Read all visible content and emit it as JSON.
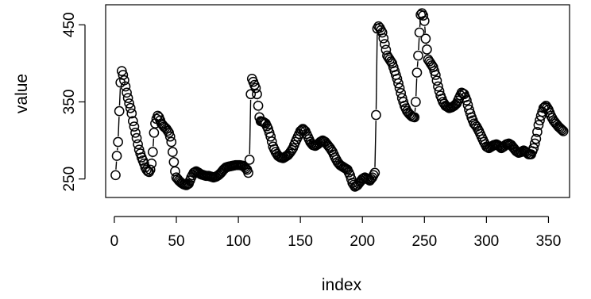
{
  "chart_data": {
    "type": "scatter",
    "xlabel": "index",
    "ylabel": "value",
    "xlim": [
      -7,
      367
    ],
    "ylim": [
      226,
      476
    ],
    "xticks": [
      0,
      50,
      100,
      150,
      200,
      250,
      300,
      350
    ],
    "yticks": [
      250,
      350,
      450
    ],
    "marker": "open-circle",
    "grid": false,
    "anchors": [
      [
        1,
        255
      ],
      [
        2,
        280
      ],
      [
        3,
        298
      ],
      [
        4,
        338
      ],
      [
        5,
        375
      ],
      [
        6,
        390
      ],
      [
        7,
        385
      ],
      [
        8,
        378
      ],
      [
        9,
        370
      ],
      [
        10,
        362
      ],
      [
        11,
        355
      ],
      [
        12,
        348
      ],
      [
        13,
        342
      ],
      [
        14,
        335
      ],
      [
        15,
        325
      ],
      [
        16,
        318
      ],
      [
        17,
        310
      ],
      [
        18,
        303
      ],
      [
        19,
        295
      ],
      [
        20,
        288
      ],
      [
        21,
        283
      ],
      [
        22,
        278
      ],
      [
        23,
        274
      ],
      [
        24,
        270
      ],
      [
        25,
        265
      ],
      [
        26,
        262
      ],
      [
        27,
        260
      ],
      [
        28,
        259
      ],
      [
        29,
        262
      ],
      [
        30,
        270
      ],
      [
        31,
        285
      ],
      [
        32,
        310
      ],
      [
        33,
        322
      ],
      [
        34,
        328
      ],
      [
        35,
        332
      ],
      [
        36,
        330
      ],
      [
        37,
        326
      ],
      [
        38,
        322
      ],
      [
        39,
        320
      ],
      [
        40,
        318
      ],
      [
        42,
        315
      ],
      [
        44,
        310
      ],
      [
        45,
        305
      ],
      [
        46,
        298
      ],
      [
        47,
        285
      ],
      [
        48,
        272
      ],
      [
        49,
        260
      ],
      [
        50,
        252
      ],
      [
        52,
        248
      ],
      [
        54,
        245
      ],
      [
        56,
        243
      ],
      [
        58,
        242
      ],
      [
        60,
        244
      ],
      [
        62,
        252
      ],
      [
        64,
        258
      ],
      [
        66,
        260
      ],
      [
        68,
        258
      ],
      [
        70,
        256
      ],
      [
        72,
        255
      ],
      [
        74,
        254
      ],
      [
        76,
        254
      ],
      [
        78,
        253
      ],
      [
        80,
        252
      ],
      [
        82,
        253
      ],
      [
        84,
        255
      ],
      [
        86,
        258
      ],
      [
        88,
        262
      ],
      [
        90,
        265
      ],
      [
        92,
        266
      ],
      [
        95,
        267
      ],
      [
        98,
        268
      ],
      [
        101,
        268
      ],
      [
        104,
        267
      ],
      [
        107,
        262
      ],
      [
        108,
        258
      ],
      [
        109,
        275
      ],
      [
        110,
        360
      ],
      [
        111,
        380
      ],
      [
        112,
        376
      ],
      [
        113,
        372
      ],
      [
        114,
        368
      ],
      [
        115,
        360
      ],
      [
        116,
        345
      ],
      [
        117,
        330
      ],
      [
        118,
        325
      ],
      [
        120,
        324
      ],
      [
        122,
        322
      ],
      [
        124,
        315
      ],
      [
        126,
        305
      ],
      [
        128,
        292
      ],
      [
        130,
        285
      ],
      [
        132,
        280
      ],
      [
        134,
        278
      ],
      [
        136,
        277
      ],
      [
        138,
        279
      ],
      [
        140,
        281
      ],
      [
        142,
        285
      ],
      [
        144,
        290
      ],
      [
        146,
        298
      ],
      [
        148,
        305
      ],
      [
        150,
        312
      ],
      [
        152,
        315
      ],
      [
        154,
        312
      ],
      [
        156,
        305
      ],
      [
        158,
        298
      ],
      [
        160,
        294
      ],
      [
        162,
        293
      ],
      [
        164,
        295
      ],
      [
        166,
        298
      ],
      [
        168,
        300
      ],
      [
        170,
        298
      ],
      [
        172,
        294
      ],
      [
        174,
        290
      ],
      [
        176,
        285
      ],
      [
        178,
        278
      ],
      [
        180,
        272
      ],
      [
        182,
        268
      ],
      [
        184,
        266
      ],
      [
        186,
        264
      ],
      [
        188,
        262
      ],
      [
        190,
        255
      ],
      [
        192,
        245
      ],
      [
        194,
        240
      ],
      [
        196,
        242
      ],
      [
        198,
        246
      ],
      [
        200,
        250
      ],
      [
        202,
        252
      ],
      [
        204,
        250
      ],
      [
        206,
        248
      ],
      [
        208,
        252
      ],
      [
        210,
        258
      ],
      [
        211,
        333
      ],
      [
        212,
        445
      ],
      [
        213,
        448
      ],
      [
        214,
        446
      ],
      [
        216,
        440
      ],
      [
        218,
        425
      ],
      [
        220,
        410
      ],
      [
        222,
        405
      ],
      [
        224,
        400
      ],
      [
        226,
        390
      ],
      [
        228,
        380
      ],
      [
        230,
        368
      ],
      [
        232,
        355
      ],
      [
        234,
        345
      ],
      [
        236,
        338
      ],
      [
        238,
        334
      ],
      [
        240,
        331
      ],
      [
        242,
        330
      ],
      [
        243,
        350
      ],
      [
        244,
        388
      ],
      [
        245,
        410
      ],
      [
        246,
        440
      ],
      [
        247,
        463
      ],
      [
        248,
        465
      ],
      [
        249,
        462
      ],
      [
        250,
        455
      ],
      [
        251,
        432
      ],
      [
        252,
        418
      ],
      [
        253,
        405
      ],
      [
        255,
        400
      ],
      [
        257,
        395
      ],
      [
        259,
        385
      ],
      [
        261,
        370
      ],
      [
        263,
        358
      ],
      [
        265,
        350
      ],
      [
        267,
        345
      ],
      [
        270,
        342
      ],
      [
        272,
        343
      ],
      [
        274,
        345
      ],
      [
        276,
        348
      ],
      [
        278,
        355
      ],
      [
        280,
        362
      ],
      [
        282,
        360
      ],
      [
        284,
        352
      ],
      [
        286,
        340
      ],
      [
        288,
        330
      ],
      [
        290,
        322
      ],
      [
        292,
        318
      ],
      [
        294,
        312
      ],
      [
        296,
        305
      ],
      [
        298,
        298
      ],
      [
        300,
        292
      ],
      [
        302,
        290
      ],
      [
        304,
        292
      ],
      [
        306,
        294
      ],
      [
        308,
        295
      ],
      [
        310,
        293
      ],
      [
        312,
        290
      ],
      [
        314,
        292
      ],
      [
        316,
        295
      ],
      [
        318,
        296
      ],
      [
        320,
        294
      ],
      [
        322,
        290
      ],
      [
        324,
        286
      ],
      [
        326,
        284
      ],
      [
        328,
        285
      ],
      [
        330,
        287
      ],
      [
        332,
        285
      ],
      [
        334,
        282
      ],
      [
        336,
        282
      ],
      [
        338,
        290
      ],
      [
        340,
        302
      ],
      [
        342,
        320
      ],
      [
        344,
        332
      ],
      [
        346,
        342
      ],
      [
        348,
        345
      ],
      [
        350,
        340
      ],
      [
        352,
        332
      ],
      [
        354,
        326
      ],
      [
        356,
        322
      ],
      [
        358,
        318
      ],
      [
        360,
        315
      ],
      [
        362,
        312
      ]
    ]
  }
}
